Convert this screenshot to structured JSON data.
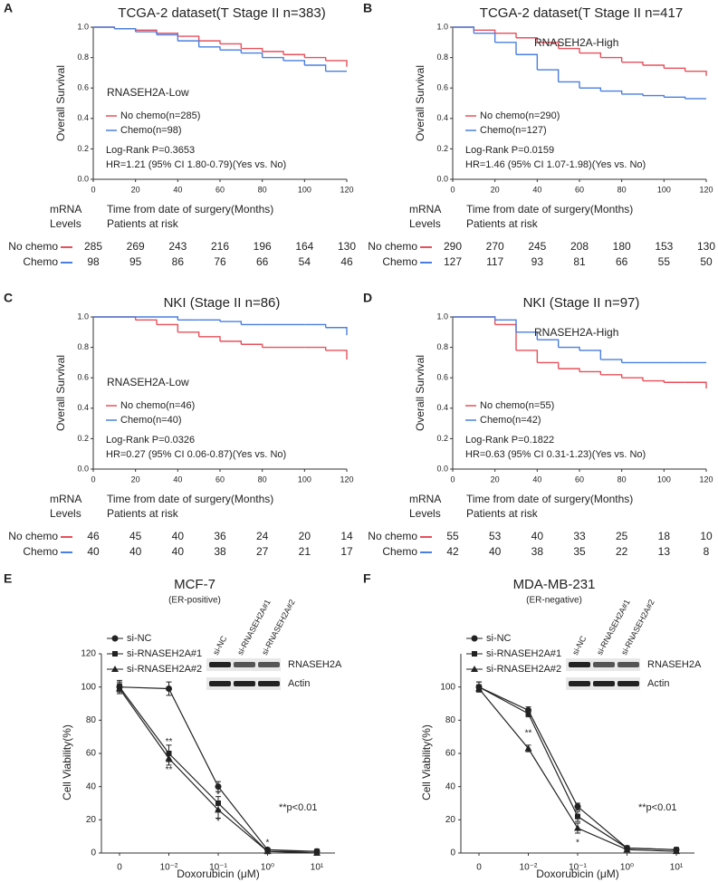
{
  "chart_data": [
    {
      "type": "km",
      "panel": "A",
      "title": "TCGA-2 dataset(T Stage II n=383)",
      "xlabel": "Time  from date of surgery(Months)",
      "ylabel": "Overall Survival",
      "subgroup": "RNASEH2A-Low",
      "logrank": "Log-Rank P=0.3653",
      "hr": "HR=1.21 (95% CI 1.80-0.79)(Yes vs. No)",
      "xlim": [
        0,
        120
      ],
      "xticks": [
        0,
        20,
        40,
        60,
        80,
        100,
        120
      ],
      "ylim": [
        0,
        1
      ],
      "yticks": [
        {
          "value": 0,
          "label": "0.0"
        },
        0.2,
        0.4,
        0.6,
        0.8,
        {
          "value": 1,
          "label": "1.0"
        }
      ],
      "x": [
        0,
        10,
        20,
        30,
        40,
        50,
        60,
        70,
        80,
        90,
        100,
        110,
        120
      ],
      "series": [
        {
          "name": "No chemo(n=285)",
          "color": "#e8505b",
          "values": [
            1,
            0.99,
            0.98,
            0.96,
            0.94,
            0.91,
            0.89,
            0.86,
            0.84,
            0.82,
            0.8,
            0.78,
            0.74
          ]
        },
        {
          "name": "Chemo(n=98)",
          "color": "#4a7fe0",
          "values": [
            1,
            0.99,
            0.97,
            0.95,
            0.91,
            0.87,
            0.85,
            0.83,
            0.8,
            0.78,
            0.75,
            0.71,
            0.71
          ]
        }
      ],
      "risk_header": [
        "mRNA",
        "Levels",
        "Patients at risk"
      ],
      "risk_table": [
        {
          "name": "No chemo",
          "values": [
            285,
            269,
            243,
            216,
            196,
            164,
            130
          ]
        },
        {
          "name": "Chemo",
          "values": [
            98,
            95,
            86,
            76,
            66,
            54,
            46
          ]
        }
      ]
    },
    {
      "type": "km",
      "panel": "B",
      "title": "TCGA-2  dataset(T  Stage II n=417",
      "xlabel": "Time  from date of surgery(Months)",
      "ylabel": "Overall Survival",
      "subgroup": "RNASEH2A-High",
      "logrank": "Log-Rank P=0.0159",
      "hr": "HR=1.46 (95% CI 1.07-1.98)(Yes vs. No)",
      "xlim": [
        0,
        120
      ],
      "xticks": [
        0,
        20,
        40,
        60,
        80,
        100,
        120
      ],
      "ylim": [
        0,
        1
      ],
      "yticks": [
        {
          "value": 0,
          "label": "0.0"
        },
        0.2,
        0.4,
        0.6,
        0.8,
        {
          "value": 1,
          "label": "1.0"
        }
      ],
      "x": [
        0,
        10,
        20,
        30,
        40,
        50,
        60,
        70,
        80,
        90,
        100,
        110,
        120
      ],
      "series": [
        {
          "name": "No chemo(n=290)",
          "color": "#e8505b",
          "values": [
            1,
            0.98,
            0.96,
            0.93,
            0.9,
            0.86,
            0.83,
            0.8,
            0.77,
            0.75,
            0.73,
            0.71,
            0.68
          ]
        },
        {
          "name": "Chemo(n=127)",
          "color": "#4a7fe0",
          "values": [
            1,
            0.96,
            0.9,
            0.82,
            0.72,
            0.64,
            0.6,
            0.58,
            0.56,
            0.55,
            0.54,
            0.53,
            0.53
          ]
        }
      ],
      "risk_header": [
        "mRNA",
        "Levels",
        "Patients at risk"
      ],
      "risk_table": [
        {
          "name": "No chemo",
          "values": [
            290,
            270,
            245,
            208,
            180,
            153,
            130
          ]
        },
        {
          "name": "Chemo",
          "values": [
            127,
            117,
            93,
            81,
            66,
            55,
            50
          ]
        }
      ]
    },
    {
      "type": "km",
      "panel": "C",
      "title": "NKI (Stage II n=86)",
      "xlabel": "Time  from date of surgery(Months)",
      "ylabel": "Overall Survival",
      "subgroup": "RNASEH2A-Low",
      "logrank": "Log-Rank P=0.0326",
      "hr": "HR=0.27 (95% CI 0.06-0.87)(Yes vs. No)",
      "xlim": [
        0,
        120
      ],
      "xticks": [
        0,
        20,
        40,
        60,
        80,
        100,
        120
      ],
      "ylim": [
        0,
        1
      ],
      "yticks": [
        {
          "value": 0,
          "label": "0.0"
        },
        0.2,
        0.4,
        0.6,
        0.8,
        {
          "value": 1,
          "label": "1.0"
        }
      ],
      "x": [
        0,
        10,
        20,
        30,
        40,
        50,
        60,
        70,
        80,
        90,
        100,
        110,
        120
      ],
      "series": [
        {
          "name": "No chemo(n=46)",
          "color": "#e8505b",
          "values": [
            1,
            1,
            0.98,
            0.95,
            0.9,
            0.87,
            0.84,
            0.82,
            0.8,
            0.8,
            0.8,
            0.78,
            0.72
          ]
        },
        {
          "name": "Chemo(n=40)",
          "color": "#4a7fe0",
          "values": [
            1,
            1,
            1,
            1,
            0.98,
            0.98,
            0.97,
            0.95,
            0.95,
            0.95,
            0.95,
            0.93,
            0.88
          ]
        }
      ],
      "risk_header": [
        "mRNA",
        "Levels",
        "Patients at risk"
      ],
      "risk_table": [
        {
          "name": "No chemo",
          "values": [
            46,
            45,
            40,
            36,
            24,
            20,
            14
          ]
        },
        {
          "name": "Chemo",
          "values": [
            40,
            40,
            40,
            38,
            27,
            21,
            17
          ]
        }
      ]
    },
    {
      "type": "km",
      "panel": "D",
      "title": "NKI (Stage II n=97)",
      "xlabel": "Time  from date of surgery(Months)",
      "ylabel": "Overall Survival",
      "subgroup": "RNASEH2A-High",
      "logrank": "Log-Rank P=0.1822",
      "hr": "HR=0.63 (95% CI 0.31-1.23)(Yes vs. No)",
      "xlim": [
        0,
        120
      ],
      "xticks": [
        0,
        20,
        40,
        60,
        80,
        100,
        120
      ],
      "ylim": [
        0,
        1
      ],
      "yticks": [
        {
          "value": 0,
          "label": "0.0"
        },
        0.2,
        0.4,
        0.6,
        0.8,
        {
          "value": 1,
          "label": "1.0"
        }
      ],
      "x": [
        0,
        10,
        20,
        30,
        40,
        50,
        60,
        70,
        80,
        90,
        100,
        110,
        120
      ],
      "series": [
        {
          "name": "No chemo(n=55)",
          "color": "#e8505b",
          "values": [
            1,
            1,
            0.95,
            0.78,
            0.7,
            0.66,
            0.64,
            0.62,
            0.6,
            0.58,
            0.57,
            0.57,
            0.53
          ]
        },
        {
          "name": "Chemo(n=42)",
          "color": "#4a7fe0",
          "values": [
            1,
            1,
            0.98,
            0.9,
            0.85,
            0.8,
            0.78,
            0.72,
            0.7,
            0.7,
            0.7,
            0.7,
            0.7
          ]
        }
      ],
      "risk_header": [
        "mRNA",
        "Levels",
        "Patients at risk"
      ],
      "risk_table": [
        {
          "name": "No chemo",
          "values": [
            55,
            53,
            40,
            33,
            25,
            18,
            10
          ]
        },
        {
          "name": "Chemo",
          "values": [
            42,
            40,
            38,
            35,
            22,
            13,
            8
          ]
        }
      ]
    },
    {
      "type": "line",
      "panel": "E",
      "title": "MCF-7",
      "subtitle": "(ER-positive)",
      "xlabel": "Doxorubicin (μM)",
      "ylabel": "Cell Viability(%)",
      "categories": [
        "0",
        "10⁻²",
        "10⁻¹",
        "10⁰",
        "10¹"
      ],
      "ylim": [
        0,
        120
      ],
      "yticks": [
        0,
        20,
        40,
        60,
        80,
        100,
        120
      ],
      "series": [
        {
          "name": "si-NC",
          "color": "#222222",
          "marker": "circle",
          "values": [
            100,
            99,
            40,
            2,
            1
          ],
          "errors": [
            3,
            4,
            3,
            1,
            1
          ]
        },
        {
          "name": "si-RNASEH2A#1",
          "color": "#222222",
          "marker": "square",
          "values": [
            100,
            60,
            30,
            1,
            1
          ],
          "errors": [
            4,
            5,
            4,
            1,
            1
          ]
        },
        {
          "name": "si-RNASEH2A#2",
          "color": "#222222",
          "marker": "triangle",
          "values": [
            99,
            57,
            26,
            1,
            0
          ],
          "errors": [
            3,
            4,
            5,
            1,
            1
          ]
        }
      ],
      "blot": {
        "lanes": [
          "si-NC",
          "si-RNASEH2A#1",
          "si-RNASEH2A#2"
        ],
        "bands": [
          "RNASEH2A",
          "Actin"
        ]
      },
      "significance": [
        "**",
        "**",
        "*",
        "*",
        "*"
      ],
      "note": "**p<0.01"
    },
    {
      "type": "line",
      "panel": "F",
      "title": "MDA-MB-231",
      "subtitle": "(ER-negative)",
      "xlabel": "Doxorubicin (μM)",
      "ylabel": "Cell Viability(%)",
      "categories": [
        "0",
        "10⁻²",
        "10⁻¹",
        "10⁰",
        "10¹"
      ],
      "ylim": [
        0,
        120
      ],
      "yticks": [
        0,
        20,
        40,
        60,
        80,
        100
      ],
      "series": [
        {
          "name": "si-NC",
          "color": "#222222",
          "marker": "circle",
          "values": [
            100,
            86,
            28,
            3,
            2
          ],
          "errors": [
            3,
            2,
            2,
            1,
            1
          ]
        },
        {
          "name": "si-RNASEH2A#1",
          "color": "#222222",
          "marker": "square",
          "values": [
            100,
            84,
            22,
            3,
            2
          ],
          "errors": [
            3,
            2,
            3,
            1,
            1
          ]
        },
        {
          "name": "si-RNASEH2A#2",
          "color": "#222222",
          "marker": "triangle",
          "values": [
            99,
            63,
            15,
            2,
            1
          ],
          "errors": [
            2,
            2,
            3,
            1,
            1
          ]
        }
      ],
      "blot": {
        "lanes": [
          "si-NC",
          "si-RNASEH2A#1",
          "si-RNASEH2A#2"
        ],
        "bands": [
          "RNASEH2A",
          "Actin"
        ]
      },
      "significance": [
        "**",
        "*"
      ],
      "note": "**p<0.01"
    }
  ]
}
